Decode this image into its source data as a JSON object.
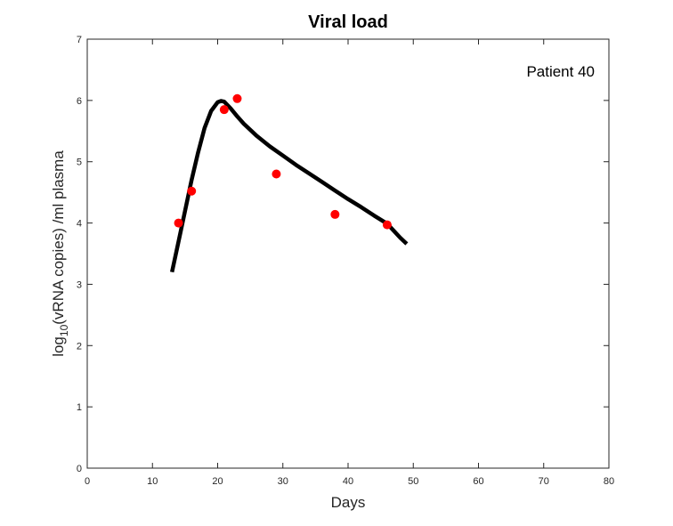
{
  "chart_data": {
    "type": "line",
    "title": "Viral load",
    "xlabel": "Days",
    "ylabel": {
      "prefix": "log",
      "subscript": "10",
      "suffix": "(vRNA copies) /ml plasma"
    },
    "annotation": "Patient 40",
    "xlim": [
      0,
      80
    ],
    "ylim": [
      0,
      7
    ],
    "xticks": [
      0,
      10,
      20,
      30,
      40,
      50,
      60,
      70,
      80
    ],
    "yticks": [
      0,
      1,
      2,
      3,
      4,
      5,
      6,
      7
    ],
    "grid": false,
    "series": [
      {
        "kind": "line",
        "color": "#000000",
        "x": [
          13,
          14,
          15,
          16,
          17,
          18,
          19,
          20,
          20.5,
          21,
          22,
          23,
          24,
          26,
          28,
          30,
          32,
          34,
          36,
          38,
          40,
          42,
          44,
          46,
          48,
          49
        ],
        "y": [
          3.2,
          3.7,
          4.2,
          4.7,
          5.15,
          5.55,
          5.83,
          5.97,
          5.99,
          5.98,
          5.87,
          5.74,
          5.62,
          5.42,
          5.25,
          5.1,
          4.95,
          4.81,
          4.67,
          4.53,
          4.39,
          4.26,
          4.12,
          3.99,
          3.76,
          3.66
        ]
      },
      {
        "kind": "scatter",
        "color": "#ff0000",
        "x": [
          14,
          16,
          21,
          23,
          29,
          38,
          46
        ],
        "y": [
          4.0,
          4.52,
          5.85,
          6.03,
          4.8,
          4.14,
          3.97
        ]
      }
    ]
  }
}
